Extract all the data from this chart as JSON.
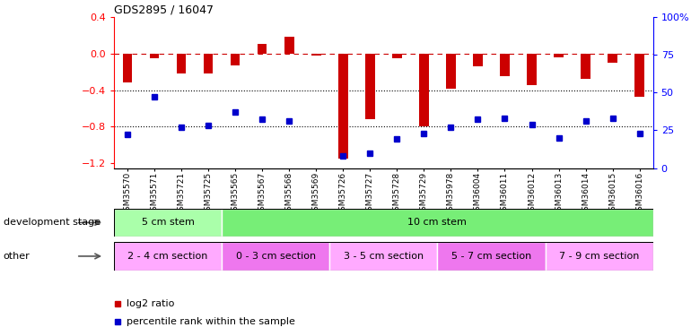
{
  "title": "GDS2895 / 16047",
  "categories": [
    "GSM35570",
    "GSM35571",
    "GSM35721",
    "GSM35725",
    "GSM35565",
    "GSM35567",
    "GSM35568",
    "GSM35569",
    "GSM35726",
    "GSM35727",
    "GSM35728",
    "GSM35729",
    "GSM35978",
    "GSM36004",
    "GSM36011",
    "GSM36012",
    "GSM36013",
    "GSM36014",
    "GSM36015",
    "GSM36016"
  ],
  "log2_ratio": [
    -0.32,
    -0.05,
    -0.22,
    -0.22,
    -0.13,
    0.1,
    0.18,
    -0.02,
    -1.15,
    -0.72,
    -0.05,
    -0.8,
    -0.38,
    -0.14,
    -0.25,
    -0.35,
    -0.04,
    -0.28,
    -0.1,
    -0.47
  ],
  "pct_rank": [
    22,
    47,
    27,
    28,
    37,
    32,
    31,
    null,
    8,
    10,
    19,
    23,
    27,
    32,
    33,
    29,
    20,
    31,
    33,
    23
  ],
  "ylim_left": [
    -1.25,
    0.4
  ],
  "ylim_right": [
    0,
    100
  ],
  "yticks_left": [
    -1.2,
    -0.8,
    -0.4,
    0.0,
    0.4
  ],
  "yticks_right": [
    0,
    25,
    50,
    75,
    100
  ],
  "bar_color": "#cc0000",
  "dot_color": "#0000cc",
  "dashed_color": "#cc0000",
  "grid_color": "#000000",
  "dev_stage_groups": [
    {
      "label": "5 cm stem",
      "start": 0,
      "end": 4,
      "color": "#aaffaa"
    },
    {
      "label": "10 cm stem",
      "start": 4,
      "end": 20,
      "color": "#77ee77"
    }
  ],
  "other_groups": [
    {
      "label": "2 - 4 cm section",
      "start": 0,
      "end": 4,
      "color": "#ffaaff"
    },
    {
      "label": "0 - 3 cm section",
      "start": 4,
      "end": 8,
      "color": "#ee77ee"
    },
    {
      "label": "3 - 5 cm section",
      "start": 8,
      "end": 12,
      "color": "#ffaaff"
    },
    {
      "label": "5 - 7 cm section",
      "start": 12,
      "end": 16,
      "color": "#ee77ee"
    },
    {
      "label": "7 - 9 cm section",
      "start": 16,
      "end": 20,
      "color": "#ffaaff"
    }
  ],
  "dev_stage_label": "development stage",
  "other_label": "other",
  "legend_items": [
    {
      "label": "log2 ratio",
      "color": "#cc0000"
    },
    {
      "label": "percentile rank within the sample",
      "color": "#0000cc"
    }
  ],
  "fig_width": 7.7,
  "fig_height": 3.75
}
